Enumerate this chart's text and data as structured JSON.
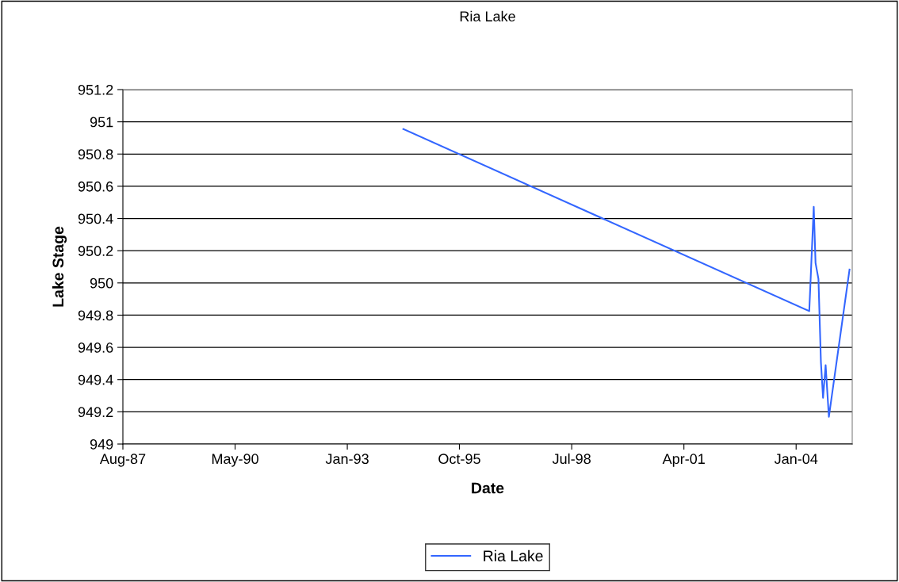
{
  "chart_data": {
    "type": "line",
    "title": "Ria Lake",
    "xlabel": "Date",
    "ylabel": "Lake Stage",
    "x": [
      "1994-06-14",
      "2004-05-10",
      "2004-05-26",
      "2004-06-19",
      "2004-07-05",
      "2004-07-31",
      "2004-08-22",
      "2004-09-10",
      "2004-10-03",
      "2004-11-01",
      "2005-05-04"
    ],
    "series": [
      {
        "name": "Ria Lake",
        "color": "#3366ff",
        "values": [
          950.955,
          949.825,
          950.083,
          950.473,
          950.124,
          950.025,
          949.508,
          949.287,
          949.489,
          949.169,
          950.083
        ]
      }
    ],
    "xlim": [
      "1987-08-11",
      "2005-05-28"
    ],
    "xticks": [
      {
        "value": "1987-08-11",
        "label": "Aug-87"
      },
      {
        "value": "1990-05-07",
        "label": "May-90"
      },
      {
        "value": "1993-01-31",
        "label": "Jan-93"
      },
      {
        "value": "1995-10-27",
        "label": "Oct-95"
      },
      {
        "value": "1998-07-24",
        "label": "Jul-98"
      },
      {
        "value": "2001-04-19",
        "label": "Apr-01"
      },
      {
        "value": "2004-01-14",
        "label": "Jan-04"
      }
    ],
    "ylim": [
      949,
      951.2
    ],
    "yticks": [
      949,
      949.2,
      949.4,
      949.6,
      949.8,
      950,
      950.2,
      950.4,
      950.6,
      950.8,
      951,
      951.2
    ],
    "grid": "y",
    "legend": "bottom",
    "marker": "none",
    "line_style": "solid"
  }
}
